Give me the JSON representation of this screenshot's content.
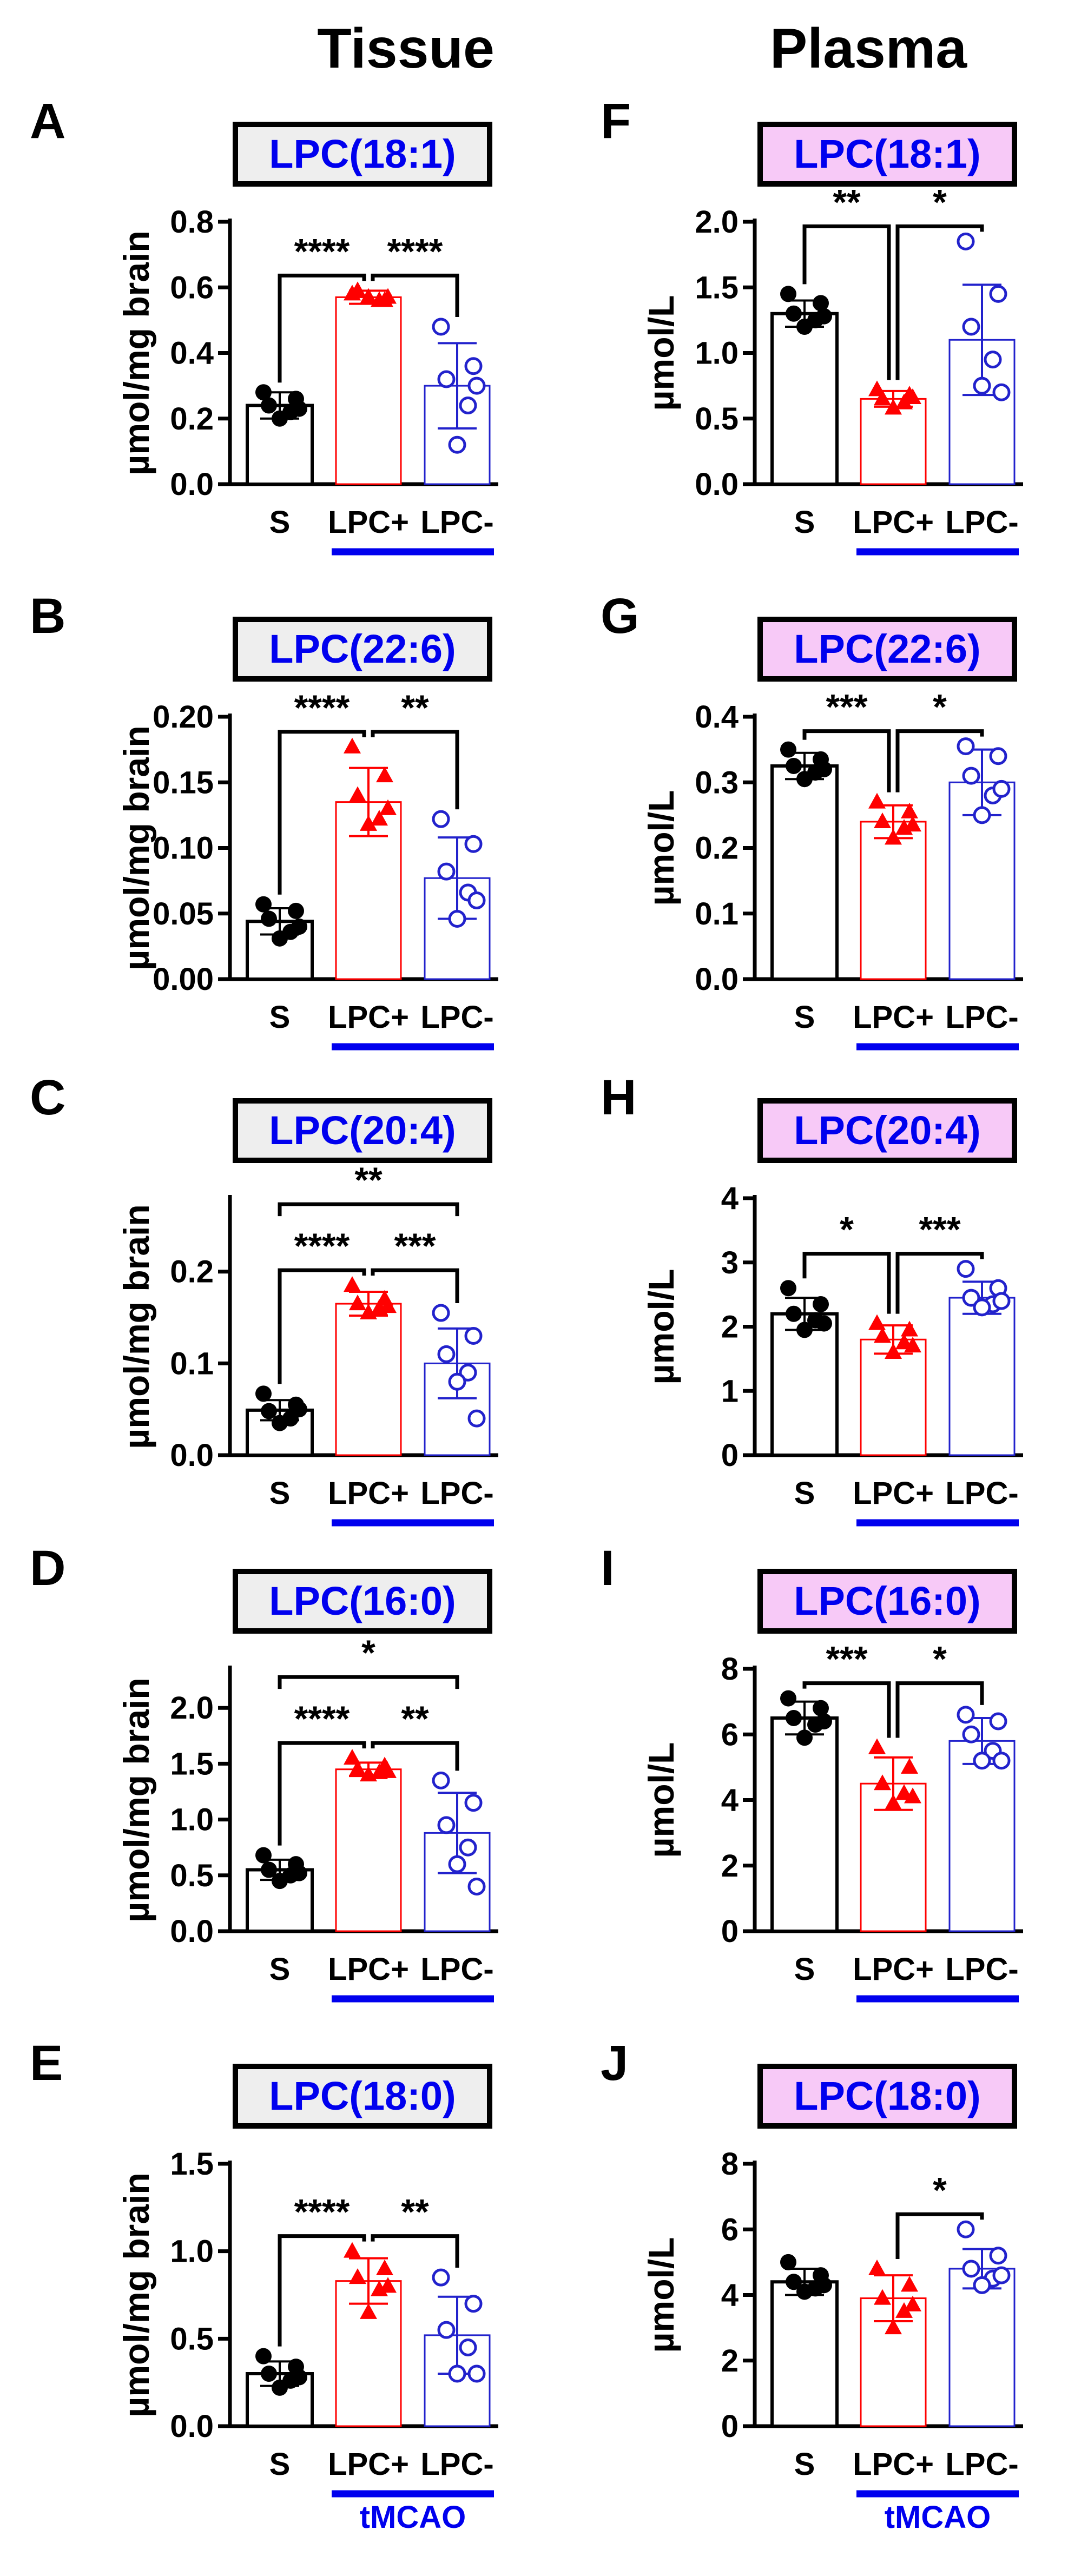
{
  "headers": {
    "left": "Tissue",
    "right": "Plasma"
  },
  "colors": {
    "sham": "#000000",
    "lpc_pos": "#ff0000",
    "lpc_neg": "#2222cc",
    "group_bar": "#0000ee",
    "tissue_box": "#eeeeee",
    "plasma_box": "#f7c9f7"
  },
  "chart_data": [
    {
      "panel": "A",
      "col": "left",
      "row": 0,
      "type": "bar",
      "title": "LPC(18:1)",
      "ylabel": "µmol/mg brain",
      "ylim": [
        0,
        0.8
      ],
      "yticks": [
        "0.0",
        "0.2",
        "0.4",
        "0.6",
        "0.8"
      ],
      "tickvals": [
        0,
        0.2,
        0.4,
        0.6,
        0.8
      ],
      "categories": [
        "S",
        "LPC+",
        "LPC-"
      ],
      "group_label": "",
      "series": [
        {
          "mean": 0.24,
          "sd": 0.04,
          "points": [
            0.28,
            0.26,
            0.24,
            0.22,
            0.2,
            0.23
          ]
        },
        {
          "mean": 0.57,
          "sd": 0.02,
          "points": [
            0.58,
            0.56,
            0.59,
            0.56,
            0.57,
            0.57
          ]
        },
        {
          "mean": 0.3,
          "sd": 0.13,
          "points": [
            0.48,
            0.36,
            0.32,
            0.24,
            0.12,
            0.3
          ]
        }
      ],
      "sig": [
        {
          "from": 0,
          "to": 1,
          "label": "****",
          "level": 1
        },
        {
          "from": 1,
          "to": 2,
          "label": "****",
          "level": 1
        }
      ]
    },
    {
      "panel": "B",
      "col": "left",
      "row": 1,
      "type": "bar",
      "title": "LPC(22:6)",
      "ylabel": "µmol/mg brain",
      "ylim": [
        0,
        0.2
      ],
      "yticks": [
        "0.00",
        "0.05",
        "0.10",
        "0.15",
        "0.20"
      ],
      "tickvals": [
        0,
        0.05,
        0.1,
        0.15,
        0.2
      ],
      "categories": [
        "S",
        "LPC+",
        "LPC-"
      ],
      "group_label": "",
      "series": [
        {
          "mean": 0.044,
          "sd": 0.01,
          "points": [
            0.057,
            0.052,
            0.046,
            0.036,
            0.031,
            0.04
          ]
        },
        {
          "mean": 0.135,
          "sd": 0.026,
          "points": [
            0.177,
            0.155,
            0.14,
            0.122,
            0.118,
            0.13
          ]
        },
        {
          "mean": 0.077,
          "sd": 0.031,
          "points": [
            0.122,
            0.103,
            0.082,
            0.066,
            0.046,
            0.06
          ]
        }
      ],
      "sig": [
        {
          "from": 0,
          "to": 1,
          "label": "****",
          "level": 1
        },
        {
          "from": 1,
          "to": 2,
          "label": "**",
          "level": 1
        }
      ]
    },
    {
      "panel": "C",
      "col": "left",
      "row": 2,
      "type": "bar",
      "title": "LPC(20:4)",
      "ylabel": "µmol/mg brain",
      "ylim": [
        0,
        0.28
      ],
      "yticks": [
        "0.0",
        "0.1",
        "0.2"
      ],
      "tickvals": [
        0,
        0.1,
        0.2
      ],
      "categories": [
        "S",
        "LPC+",
        "LPC-"
      ],
      "group_label": "",
      "series": [
        {
          "mean": 0.049,
          "sd": 0.011,
          "points": [
            0.067,
            0.055,
            0.048,
            0.04,
            0.035,
            0.05
          ]
        },
        {
          "mean": 0.165,
          "sd": 0.013,
          "points": [
            0.185,
            0.17,
            0.165,
            0.16,
            0.155,
            0.162
          ]
        },
        {
          "mean": 0.1,
          "sd": 0.038,
          "points": [
            0.155,
            0.13,
            0.11,
            0.09,
            0.08,
            0.04
          ]
        }
      ],
      "sig": [
        {
          "from": 0,
          "to": 1,
          "label": "****",
          "level": 1
        },
        {
          "from": 1,
          "to": 2,
          "label": "***",
          "level": 1
        },
        {
          "from": 0,
          "to": 2,
          "label": "**",
          "level": 2
        }
      ]
    },
    {
      "panel": "D",
      "col": "left",
      "row": 3,
      "type": "bar",
      "title": "LPC(16:0)",
      "ylabel": "µmol/mg brain",
      "ylim": [
        0,
        2.35
      ],
      "yticks": [
        "0.0",
        "0.5",
        "1.0",
        "1.5",
        "2.0"
      ],
      "tickvals": [
        0,
        0.5,
        1,
        1.5,
        2
      ],
      "categories": [
        "S",
        "LPC+",
        "LPC-"
      ],
      "group_label": "",
      "series": [
        {
          "mean": 0.55,
          "sd": 0.09,
          "points": [
            0.68,
            0.6,
            0.55,
            0.5,
            0.45,
            0.52
          ]
        },
        {
          "mean": 1.45,
          "sd": 0.06,
          "points": [
            1.55,
            1.48,
            1.45,
            1.42,
            1.4,
            1.43
          ]
        },
        {
          "mean": 0.88,
          "sd": 0.36,
          "points": [
            1.35,
            1.15,
            0.95,
            0.75,
            0.6,
            0.4
          ]
        }
      ],
      "sig": [
        {
          "from": 0,
          "to": 1,
          "label": "****",
          "level": 1
        },
        {
          "from": 1,
          "to": 2,
          "label": "**",
          "level": 1
        },
        {
          "from": 0,
          "to": 2,
          "label": "*",
          "level": 2
        }
      ]
    },
    {
      "panel": "E",
      "col": "left",
      "row": 4,
      "type": "bar",
      "title": "LPC(18:0)",
      "ylabel": "µmol/mg brain",
      "ylim": [
        0,
        1.5
      ],
      "yticks": [
        "0.0",
        "0.5",
        "1.0",
        "1.5"
      ],
      "tickvals": [
        0,
        0.5,
        1,
        1.5
      ],
      "categories": [
        "S",
        "LPC+",
        "LPC-"
      ],
      "group_label": "tMCAO",
      "series": [
        {
          "mean": 0.3,
          "sd": 0.07,
          "points": [
            0.4,
            0.34,
            0.3,
            0.26,
            0.22,
            0.28
          ]
        },
        {
          "mean": 0.83,
          "sd": 0.13,
          "points": [
            1.0,
            0.9,
            0.85,
            0.78,
            0.65,
            0.8
          ]
        },
        {
          "mean": 0.52,
          "sd": 0.22,
          "points": [
            0.85,
            0.7,
            0.55,
            0.45,
            0.3,
            0.3
          ]
        }
      ],
      "sig": [
        {
          "from": 0,
          "to": 1,
          "label": "****",
          "level": 1
        },
        {
          "from": 1,
          "to": 2,
          "label": "**",
          "level": 1
        }
      ]
    },
    {
      "panel": "F",
      "col": "right",
      "row": 0,
      "type": "bar",
      "title": "LPC(18:1)",
      "ylabel": "µmol/L",
      "ylim": [
        0,
        2.0
      ],
      "yticks": [
        "0.0",
        "0.5",
        "1.0",
        "1.5",
        "2.0"
      ],
      "tickvals": [
        0,
        0.5,
        1,
        1.5,
        2
      ],
      "categories": [
        "S",
        "LPC+",
        "LPC-"
      ],
      "group_label": "",
      "series": [
        {
          "mean": 1.3,
          "sd": 0.1,
          "points": [
            1.45,
            1.38,
            1.3,
            1.25,
            1.2,
            1.28
          ]
        },
        {
          "mean": 0.65,
          "sd": 0.06,
          "points": [
            0.72,
            0.68,
            0.65,
            0.62,
            0.58,
            0.66
          ]
        },
        {
          "mean": 1.1,
          "sd": 0.42,
          "points": [
            1.85,
            1.45,
            1.2,
            0.95,
            0.75,
            0.7
          ]
        }
      ],
      "sig": [
        {
          "from": 0,
          "to": 1,
          "label": "**",
          "level": 1
        },
        {
          "from": 1,
          "to": 2,
          "label": "*",
          "level": 1
        }
      ]
    },
    {
      "panel": "G",
      "col": "right",
      "row": 1,
      "type": "bar",
      "title": "LPC(22:6)",
      "ylabel": "µmol/L",
      "ylim": [
        0,
        0.4
      ],
      "yticks": [
        "0.0",
        "0.1",
        "0.2",
        "0.3",
        "0.4"
      ],
      "tickvals": [
        0,
        0.1,
        0.2,
        0.3,
        0.4
      ],
      "categories": [
        "S",
        "LPC+",
        "LPC-"
      ],
      "group_label": "",
      "series": [
        {
          "mean": 0.325,
          "sd": 0.02,
          "points": [
            0.35,
            0.335,
            0.325,
            0.315,
            0.305,
            0.32
          ]
        },
        {
          "mean": 0.24,
          "sd": 0.025,
          "points": [
            0.27,
            0.255,
            0.24,
            0.23,
            0.215,
            0.235
          ]
        },
        {
          "mean": 0.3,
          "sd": 0.05,
          "points": [
            0.355,
            0.34,
            0.31,
            0.28,
            0.25,
            0.29
          ]
        }
      ],
      "sig": [
        {
          "from": 0,
          "to": 1,
          "label": "***",
          "level": 1
        },
        {
          "from": 1,
          "to": 2,
          "label": "*",
          "level": 1
        }
      ]
    },
    {
      "panel": "H",
      "col": "right",
      "row": 2,
      "type": "bar",
      "title": "LPC(20:4)",
      "ylabel": "µmol/L",
      "ylim": [
        0,
        4
      ],
      "yticks": [
        "0",
        "1",
        "2",
        "3",
        "4"
      ],
      "tickvals": [
        0,
        1,
        2,
        3,
        4
      ],
      "categories": [
        "S",
        "LPC+",
        "LPC-"
      ],
      "group_label": "",
      "series": [
        {
          "mean": 2.2,
          "sd": 0.25,
          "points": [
            2.6,
            2.35,
            2.2,
            2.1,
            1.95,
            2.05
          ]
        },
        {
          "mean": 1.8,
          "sd": 0.22,
          "points": [
            2.05,
            1.95,
            1.85,
            1.75,
            1.6,
            1.7
          ]
        },
        {
          "mean": 2.45,
          "sd": 0.25,
          "points": [
            2.9,
            2.6,
            2.45,
            2.35,
            2.3,
            2.4
          ]
        }
      ],
      "sig": [
        {
          "from": 0,
          "to": 1,
          "label": "*",
          "level": 1
        },
        {
          "from": 1,
          "to": 2,
          "label": "***",
          "level": 1
        }
      ]
    },
    {
      "panel": "I",
      "col": "right",
      "row": 3,
      "type": "bar",
      "title": "LPC(16:0)",
      "ylabel": "µmol/L",
      "ylim": [
        0,
        8
      ],
      "yticks": [
        "0",
        "2",
        "4",
        "6",
        "8"
      ],
      "tickvals": [
        0,
        2,
        4,
        6,
        8
      ],
      "categories": [
        "S",
        "LPC+",
        "LPC-"
      ],
      "group_label": "",
      "series": [
        {
          "mean": 6.5,
          "sd": 0.5,
          "points": [
            7.1,
            6.8,
            6.5,
            6.3,
            5.9,
            6.4
          ]
        },
        {
          "mean": 4.5,
          "sd": 0.8,
          "points": [
            5.6,
            5.0,
            4.5,
            4.2,
            3.9,
            4.1
          ]
        },
        {
          "mean": 5.8,
          "sd": 0.7,
          "points": [
            6.6,
            6.4,
            6.0,
            5.5,
            5.2,
            5.2
          ]
        }
      ],
      "sig": [
        {
          "from": 0,
          "to": 1,
          "label": "***",
          "level": 1
        },
        {
          "from": 1,
          "to": 2,
          "label": "*",
          "level": 1
        }
      ]
    },
    {
      "panel": "J",
      "col": "right",
      "row": 4,
      "type": "bar",
      "title": "LPC(18:0)",
      "ylabel": "µmol/L",
      "ylim": [
        0,
        8
      ],
      "yticks": [
        "0",
        "2",
        "4",
        "6",
        "8"
      ],
      "tickvals": [
        0,
        2,
        4,
        6,
        8
      ],
      "categories": [
        "S",
        "LPC+",
        "LPC-"
      ],
      "group_label": "tMCAO",
      "series": [
        {
          "mean": 4.4,
          "sd": 0.4,
          "points": [
            5.0,
            4.6,
            4.4,
            4.2,
            4.1,
            4.3
          ]
        },
        {
          "mean": 3.9,
          "sd": 0.7,
          "points": [
            4.8,
            4.3,
            3.9,
            3.5,
            3.0,
            3.7
          ]
        },
        {
          "mean": 4.8,
          "sd": 0.6,
          "points": [
            6.0,
            5.2,
            4.8,
            4.5,
            4.3,
            4.6
          ]
        }
      ],
      "sig": [
        {
          "from": 1,
          "to": 2,
          "label": "*",
          "level": 1
        }
      ]
    }
  ]
}
